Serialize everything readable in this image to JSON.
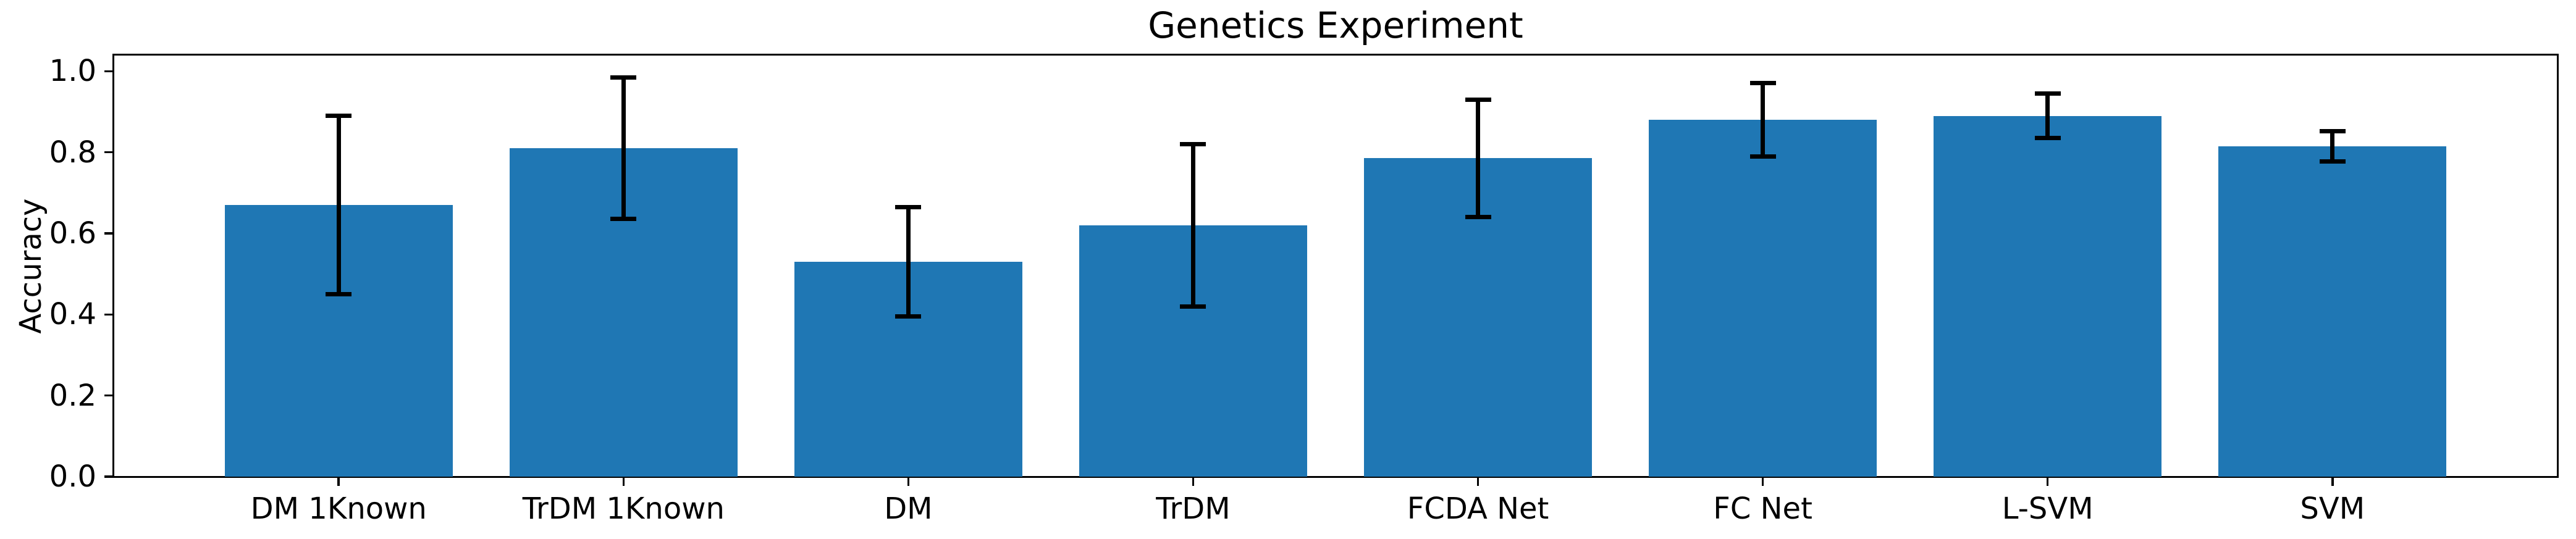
{
  "chart_data": {
    "type": "bar",
    "title": "Genetics Experiment",
    "ylabel": "Accuracy",
    "xlabel": "",
    "categories": [
      "DM 1Known",
      "TrDM 1Known",
      "DM",
      "TrDM",
      "FCDA Net",
      "FC Net",
      "L-SVM",
      "SVM"
    ],
    "values": [
      0.67,
      0.81,
      0.53,
      0.62,
      0.785,
      0.88,
      0.89,
      0.815
    ],
    "errors": [
      0.22,
      0.175,
      0.135,
      0.2,
      0.145,
      0.09,
      0.055,
      0.037
    ],
    "y_tick_labels": [
      "0.0",
      "0.2",
      "0.4",
      "0.6",
      "0.8",
      "1.0"
    ],
    "ylim": [
      0,
      1.04
    ],
    "grid": false,
    "legend_position": "none",
    "bar_color": "#1f77b4",
    "error_bar_color": "#000000",
    "axis_color": "#000000"
  }
}
